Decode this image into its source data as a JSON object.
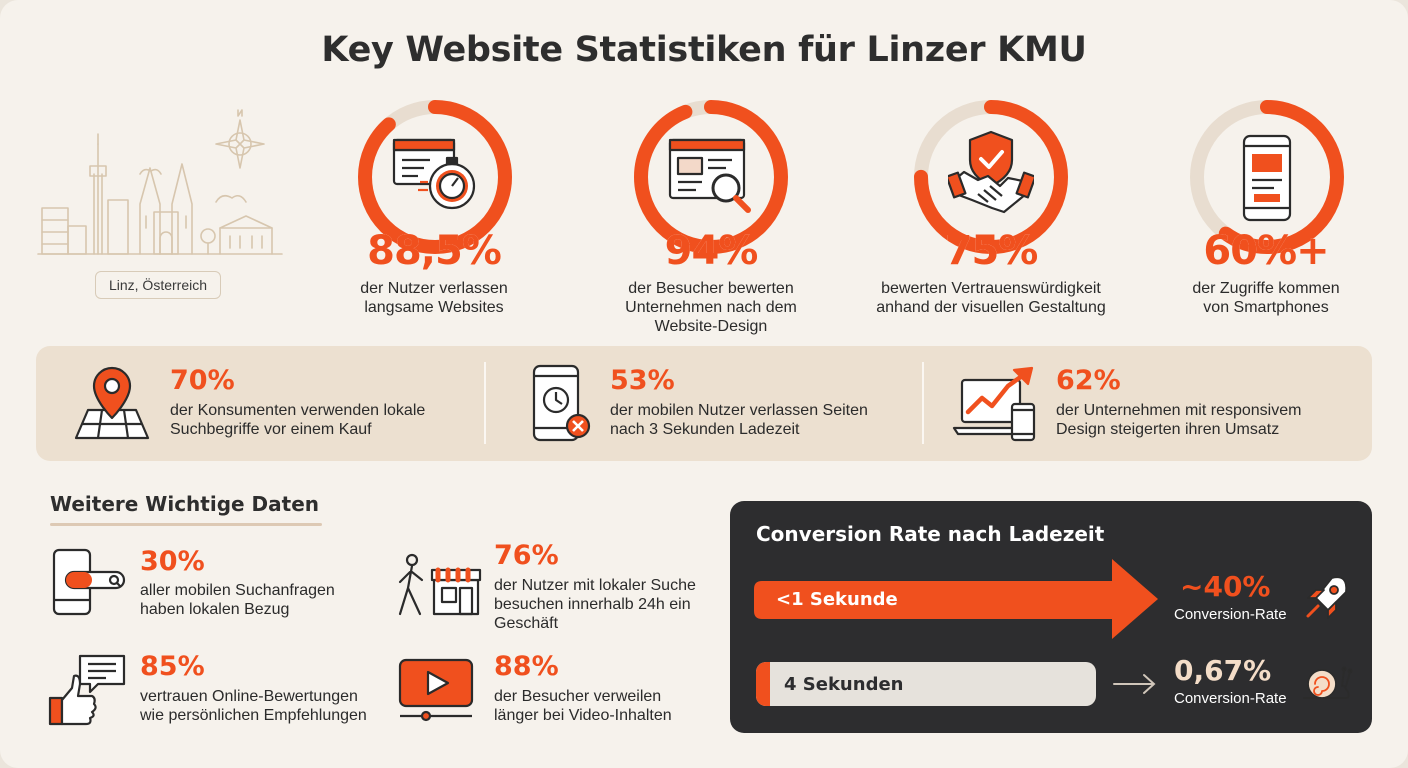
{
  "title": "Key Website Statistiken für Linzer KMU",
  "colors": {
    "accent": "#f0501e",
    "ring_track": "#e8ddd0",
    "dark_panel": "#2d2d2f",
    "band": "#ece0d0"
  },
  "location": {
    "label": "Linz, Österreich",
    "icon": "linz-skyline-icon"
  },
  "top_stats": [
    {
      "value": "88,5%",
      "fill": 0.885,
      "line1": "der Nutzer verlassen",
      "line2": "langsame Websites",
      "line3": "",
      "icon": "browser-stopwatch-icon"
    },
    {
      "value": "94%",
      "fill": 0.94,
      "line1": "der Besucher bewerten",
      "line2": "Unternehmen nach dem",
      "line3": "Website-Design",
      "icon": "browser-magnifier-icon"
    },
    {
      "value": "75%",
      "fill": 0.75,
      "line1": "bewerten Vertrauenswürdigkeit",
      "line2": "anhand der visuellen Gestaltung",
      "line3": "",
      "icon": "shield-handshake-icon"
    },
    {
      "value": "60%+",
      "fill": 0.6,
      "line1": "der Zugriffe kommen",
      "line2": "von Smartphones",
      "line3": "",
      "icon": "smartphone-icon"
    }
  ],
  "band_stats": [
    {
      "value": "70%",
      "line1": "der Konsumenten verwenden lokale",
      "line2": "Suchbegriffe vor einem Kauf",
      "icon": "map-pin-icon"
    },
    {
      "value": "53%",
      "line1": "der mobilen Nutzer verlassen Seiten",
      "line2": "nach 3 Sekunden Ladezeit",
      "icon": "phone-clock-icon"
    },
    {
      "value": "62%",
      "line1": "der Unternehmen mit responsivem",
      "line2": "Design steigerten ihren Umsatz",
      "icon": "devices-growth-icon"
    }
  ],
  "more": {
    "heading": "Weitere Wichtige Daten",
    "items": [
      {
        "value": "30%",
        "line1": "aller mobilen Suchanfragen",
        "line2": "haben lokalen Bezug",
        "line3": "",
        "icon": "phone-search-icon"
      },
      {
        "value": "76%",
        "line1": "der Nutzer mit lokaler Suche",
        "line2": "besuchen innerhalb 24h ein",
        "line3": "Geschäft",
        "icon": "walking-store-icon"
      },
      {
        "value": "85%",
        "line1": "vertrauen Online-Bewertungen",
        "line2": "wie persönlichen Empfehlungen",
        "line3": "",
        "icon": "thumbs-up-review-icon"
      },
      {
        "value": "88%",
        "line1": "der Besucher verweilen",
        "line2": "länger bei Video-Inhalten",
        "line3": "",
        "icon": "video-play-icon"
      }
    ]
  },
  "conversion": {
    "title": "Conversion Rate nach Ladezeit",
    "rows": [
      {
        "label": "<1 Sekunde",
        "value": "~40%",
        "sub": "Conversion-Rate",
        "icon": "rocket-icon"
      },
      {
        "label": "4 Sekunden",
        "value": "0,67%",
        "sub": "Conversion-Rate",
        "icon": "snail-icon"
      }
    ]
  }
}
